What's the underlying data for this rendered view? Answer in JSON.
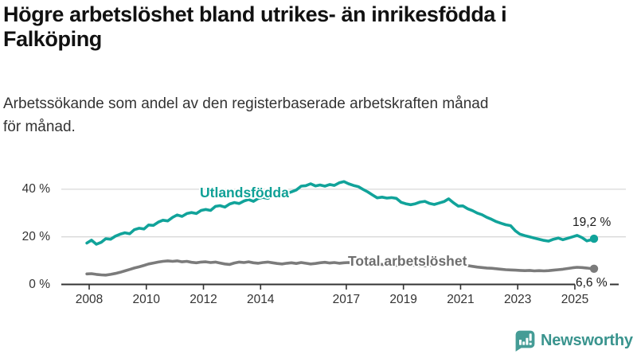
{
  "header": {
    "title_lines": [
      "Högre arbetslöshet bland utrikes- än inrikesfödda i",
      "Falköping"
    ],
    "subtitle_lines": [
      "Arbetssökande som andel av den registerbaserade arbetskraften månad",
      "för månad."
    ]
  },
  "chart_data": {
    "type": "line",
    "title": "Högre arbetslöshet bland utrikes- än inrikesfödda i Falköping",
    "subtitle": "Arbetssökande som andel av den registerbaserade arbetskraften månad för månad.",
    "unit": "%",
    "grid": "horizontal",
    "legend": "inline-labels",
    "x_axis": {
      "range": [
        2007.9,
        2025.75
      ],
      "ticks": [
        2008,
        2010,
        2012,
        2014,
        2017,
        2019,
        2021,
        2023,
        2025
      ],
      "tick_labels": [
        "2008",
        "2010",
        "2012",
        "2014",
        "2017",
        "2019",
        "2021",
        "2023",
        "2025"
      ]
    },
    "y_axis": {
      "range": [
        0,
        46
      ],
      "ticks": [
        0,
        20,
        40
      ],
      "tick_labels": [
        "0 %",
        "20 %",
        "40 %"
      ],
      "gridlines": [
        20,
        40
      ]
    },
    "colors": {
      "axis": "#333333",
      "gridline": "#d8d8d8",
      "end_label_text": "#1a1a1a"
    },
    "series": [
      {
        "name": "Utlandsfödda",
        "color": "#11a39a",
        "label_color": "#0fa096",
        "end_label": "19,2 %",
        "end_value": 19.2,
        "points": [
          [
            2007.92,
            17.4
          ],
          [
            2008.08,
            18.6
          ],
          [
            2008.25,
            16.9
          ],
          [
            2008.42,
            17.7
          ],
          [
            2008.58,
            19.2
          ],
          [
            2008.75,
            19.0
          ],
          [
            2008.92,
            20.3
          ],
          [
            2009.08,
            21.1
          ],
          [
            2009.25,
            21.7
          ],
          [
            2009.42,
            21.3
          ],
          [
            2009.58,
            23.0
          ],
          [
            2009.75,
            23.6
          ],
          [
            2009.92,
            23.3
          ],
          [
            2010.08,
            25.0
          ],
          [
            2010.25,
            24.8
          ],
          [
            2010.42,
            26.2
          ],
          [
            2010.58,
            27.0
          ],
          [
            2010.75,
            26.7
          ],
          [
            2010.92,
            28.2
          ],
          [
            2011.08,
            29.2
          ],
          [
            2011.25,
            28.6
          ],
          [
            2011.42,
            29.8
          ],
          [
            2011.58,
            30.2
          ],
          [
            2011.75,
            29.8
          ],
          [
            2011.92,
            31.1
          ],
          [
            2012.08,
            31.5
          ],
          [
            2012.25,
            31.1
          ],
          [
            2012.42,
            32.8
          ],
          [
            2012.58,
            33.1
          ],
          [
            2012.75,
            32.5
          ],
          [
            2012.92,
            33.8
          ],
          [
            2013.08,
            34.4
          ],
          [
            2013.25,
            34.0
          ],
          [
            2013.42,
            35.1
          ],
          [
            2013.58,
            35.7
          ],
          [
            2013.75,
            34.9
          ],
          [
            2013.92,
            36.2
          ],
          [
            2014.08,
            36.6
          ],
          [
            2014.25,
            36.2
          ],
          [
            2014.42,
            37.1
          ],
          [
            2014.58,
            37.7
          ],
          [
            2014.75,
            37.3
          ],
          [
            2014.92,
            38.3
          ],
          [
            2015.08,
            38.9
          ],
          [
            2015.25,
            39.7
          ],
          [
            2015.42,
            41.3
          ],
          [
            2015.58,
            41.5
          ],
          [
            2015.75,
            42.3
          ],
          [
            2015.92,
            41.4
          ],
          [
            2016.08,
            41.8
          ],
          [
            2016.25,
            41.3
          ],
          [
            2016.42,
            42.0
          ],
          [
            2016.58,
            41.6
          ],
          [
            2016.75,
            42.7
          ],
          [
            2016.92,
            43.2
          ],
          [
            2017.08,
            42.3
          ],
          [
            2017.25,
            41.6
          ],
          [
            2017.42,
            41.1
          ],
          [
            2017.58,
            40.0
          ],
          [
            2017.75,
            38.9
          ],
          [
            2017.92,
            37.6
          ],
          [
            2018.08,
            36.4
          ],
          [
            2018.25,
            36.7
          ],
          [
            2018.42,
            36.3
          ],
          [
            2018.58,
            36.5
          ],
          [
            2018.75,
            36.2
          ],
          [
            2018.92,
            34.5
          ],
          [
            2019.08,
            33.9
          ],
          [
            2019.25,
            33.5
          ],
          [
            2019.42,
            33.9
          ],
          [
            2019.58,
            34.6
          ],
          [
            2019.75,
            34.9
          ],
          [
            2019.92,
            34.0
          ],
          [
            2020.08,
            33.6
          ],
          [
            2020.25,
            34.2
          ],
          [
            2020.42,
            34.8
          ],
          [
            2020.58,
            36.0
          ],
          [
            2020.75,
            34.3
          ],
          [
            2020.92,
            32.9
          ],
          [
            2021.08,
            33.0
          ],
          [
            2021.25,
            31.8
          ],
          [
            2021.42,
            31.0
          ],
          [
            2021.58,
            30.0
          ],
          [
            2021.75,
            29.3
          ],
          [
            2021.92,
            28.2
          ],
          [
            2022.08,
            27.4
          ],
          [
            2022.25,
            26.4
          ],
          [
            2022.42,
            25.7
          ],
          [
            2022.58,
            25.1
          ],
          [
            2022.75,
            24.7
          ],
          [
            2022.92,
            22.5
          ],
          [
            2023.08,
            21.1
          ],
          [
            2023.25,
            20.5
          ],
          [
            2023.42,
            20.0
          ],
          [
            2023.58,
            19.5
          ],
          [
            2023.75,
            19.0
          ],
          [
            2023.92,
            18.5
          ],
          [
            2024.08,
            18.2
          ],
          [
            2024.25,
            19.0
          ],
          [
            2024.42,
            19.5
          ],
          [
            2024.58,
            18.8
          ],
          [
            2024.75,
            19.4
          ],
          [
            2024.92,
            20.0
          ],
          [
            2025.08,
            20.6
          ],
          [
            2025.25,
            19.7
          ],
          [
            2025.42,
            18.3
          ],
          [
            2025.55,
            18.7
          ],
          [
            2025.67,
            19.2
          ]
        ]
      },
      {
        "name": "Total arbetslöshet",
        "color": "#7b7b7b",
        "label_color": "#6e6e6e",
        "end_label": "6,6 %",
        "end_value": 6.6,
        "points": [
          [
            2007.92,
            4.4
          ],
          [
            2008.08,
            4.5
          ],
          [
            2008.25,
            4.2
          ],
          [
            2008.42,
            4.0
          ],
          [
            2008.58,
            3.9
          ],
          [
            2008.75,
            4.2
          ],
          [
            2008.92,
            4.6
          ],
          [
            2009.08,
            5.1
          ],
          [
            2009.25,
            5.7
          ],
          [
            2009.42,
            6.3
          ],
          [
            2009.58,
            6.9
          ],
          [
            2009.75,
            7.4
          ],
          [
            2009.92,
            8.0
          ],
          [
            2010.08,
            8.6
          ],
          [
            2010.25,
            9.0
          ],
          [
            2010.42,
            9.4
          ],
          [
            2010.58,
            9.7
          ],
          [
            2010.75,
            9.9
          ],
          [
            2010.92,
            9.7
          ],
          [
            2011.08,
            9.9
          ],
          [
            2011.25,
            9.5
          ],
          [
            2011.42,
            9.7
          ],
          [
            2011.58,
            9.3
          ],
          [
            2011.75,
            9.1
          ],
          [
            2011.92,
            9.4
          ],
          [
            2012.08,
            9.5
          ],
          [
            2012.25,
            9.2
          ],
          [
            2012.42,
            9.4
          ],
          [
            2012.58,
            9.0
          ],
          [
            2012.75,
            8.6
          ],
          [
            2012.92,
            8.4
          ],
          [
            2013.08,
            9.0
          ],
          [
            2013.25,
            9.4
          ],
          [
            2013.42,
            9.2
          ],
          [
            2013.58,
            9.5
          ],
          [
            2013.75,
            9.1
          ],
          [
            2013.92,
            8.9
          ],
          [
            2014.08,
            9.2
          ],
          [
            2014.25,
            9.4
          ],
          [
            2014.42,
            9.1
          ],
          [
            2014.58,
            8.8
          ],
          [
            2014.75,
            8.6
          ],
          [
            2014.92,
            8.9
          ],
          [
            2015.08,
            9.1
          ],
          [
            2015.25,
            8.8
          ],
          [
            2015.42,
            9.2
          ],
          [
            2015.58,
            8.9
          ],
          [
            2015.75,
            8.6
          ],
          [
            2015.92,
            8.8
          ],
          [
            2016.08,
            9.1
          ],
          [
            2016.25,
            9.3
          ],
          [
            2016.42,
            9.0
          ],
          [
            2016.58,
            9.2
          ],
          [
            2016.75,
            8.9
          ],
          [
            2016.92,
            9.1
          ],
          [
            2017.08,
            9.2
          ],
          [
            2017.25,
            8.9
          ],
          [
            2017.42,
            8.8
          ],
          [
            2017.58,
            8.6
          ],
          [
            2017.75,
            8.5
          ],
          [
            2017.92,
            8.4
          ],
          [
            2018.08,
            8.6
          ],
          [
            2018.25,
            8.4
          ],
          [
            2018.42,
            8.2
          ],
          [
            2018.58,
            8.1
          ],
          [
            2018.75,
            8.0
          ],
          [
            2018.92,
            8.2
          ],
          [
            2019.08,
            8.4
          ],
          [
            2019.25,
            8.2
          ],
          [
            2019.42,
            8.0
          ],
          [
            2019.58,
            7.9
          ],
          [
            2019.75,
            7.8
          ],
          [
            2019.92,
            8.0
          ],
          [
            2020.08,
            8.3
          ],
          [
            2020.25,
            8.9
          ],
          [
            2020.42,
            9.3
          ],
          [
            2020.58,
            9.1
          ],
          [
            2020.75,
            8.8
          ],
          [
            2020.92,
            8.5
          ],
          [
            2021.08,
            8.2
          ],
          [
            2021.25,
            7.9
          ],
          [
            2021.42,
            7.6
          ],
          [
            2021.58,
            7.3
          ],
          [
            2021.75,
            7.1
          ],
          [
            2021.92,
            6.9
          ],
          [
            2022.08,
            6.8
          ],
          [
            2022.25,
            6.6
          ],
          [
            2022.42,
            6.4
          ],
          [
            2022.58,
            6.2
          ],
          [
            2022.75,
            6.1
          ],
          [
            2022.92,
            6.0
          ],
          [
            2023.08,
            5.9
          ],
          [
            2023.25,
            5.8
          ],
          [
            2023.42,
            5.9
          ],
          [
            2023.58,
            5.7
          ],
          [
            2023.75,
            5.8
          ],
          [
            2023.92,
            5.7
          ],
          [
            2024.08,
            5.8
          ],
          [
            2024.25,
            6.0
          ],
          [
            2024.42,
            6.2
          ],
          [
            2024.58,
            6.4
          ],
          [
            2024.75,
            6.7
          ],
          [
            2024.92,
            7.0
          ],
          [
            2025.08,
            7.2
          ],
          [
            2025.25,
            7.1
          ],
          [
            2025.42,
            6.9
          ],
          [
            2025.55,
            6.7
          ],
          [
            2025.67,
            6.6
          ]
        ]
      }
    ]
  },
  "branding": {
    "name": "Newsworthy",
    "color": "#3a948e",
    "icon_color": "#459c96",
    "icon": "newsworthy-chart-speech-bubble-icon"
  }
}
